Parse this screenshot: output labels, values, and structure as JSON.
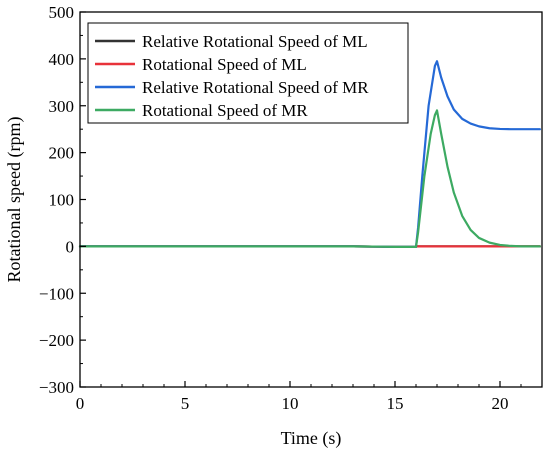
{
  "chart_data": {
    "type": "line",
    "xlabel": "Time (s)",
    "ylabel": "Rotational speed (rpm)",
    "xlim": [
      0,
      22
    ],
    "ylim": [
      -300,
      500
    ],
    "xticks": [
      0,
      5,
      10,
      15,
      20
    ],
    "yticks": [
      -300,
      -200,
      -100,
      0,
      100,
      200,
      300,
      400,
      500
    ],
    "xtick_labels": [
      "0",
      "5",
      "10",
      "15",
      "20"
    ],
    "ytick_labels": [
      "−300",
      "−200",
      "−100",
      "0",
      "100",
      "200",
      "300",
      "400",
      "500"
    ],
    "grid": false,
    "legend_position": "top-left",
    "series": [
      {
        "name": "Relative Rotational Speed of ML",
        "color": "#333333",
        "x": [
          0,
          5,
          10,
          13,
          15,
          16,
          16.05,
          21.9
        ],
        "y": [
          0,
          0,
          0,
          0,
          -1,
          -1,
          0,
          0
        ]
      },
      {
        "name": "Rotational Speed of ML",
        "color": "#e8323a",
        "x": [
          0,
          5,
          10,
          13,
          15,
          16,
          16.05,
          21.9
        ],
        "y": [
          0,
          0,
          0,
          0,
          -1,
          -1,
          0,
          0
        ]
      },
      {
        "name": "Relative Rotational Speed of MR",
        "color": "#2569d6",
        "x": [
          0,
          5,
          10,
          13,
          15,
          16,
          16.1,
          16.3,
          16.6,
          16.9,
          17.0,
          17.2,
          17.5,
          17.8,
          18.2,
          18.6,
          19.0,
          19.5,
          20.0,
          20.5,
          21.0,
          21.9
        ],
        "y": [
          0,
          0,
          0,
          0,
          -1,
          -1,
          40,
          150,
          300,
          385,
          395,
          360,
          320,
          292,
          272,
          262,
          256,
          252,
          250.5,
          250,
          250,
          250
        ]
      },
      {
        "name": "Rotational Speed of MR",
        "color": "#3daa62",
        "x": [
          0,
          5,
          10,
          13,
          15,
          16,
          16.1,
          16.4,
          16.7,
          16.9,
          17.0,
          17.2,
          17.5,
          17.8,
          18.2,
          18.6,
          19.0,
          19.5,
          20.0,
          20.5,
          21.0,
          21.9
        ],
        "y": [
          0,
          0,
          0,
          0,
          -1,
          -1,
          30,
          150,
          240,
          280,
          290,
          240,
          170,
          115,
          65,
          35,
          18,
          8,
          3,
          1,
          0,
          0
        ]
      }
    ]
  }
}
